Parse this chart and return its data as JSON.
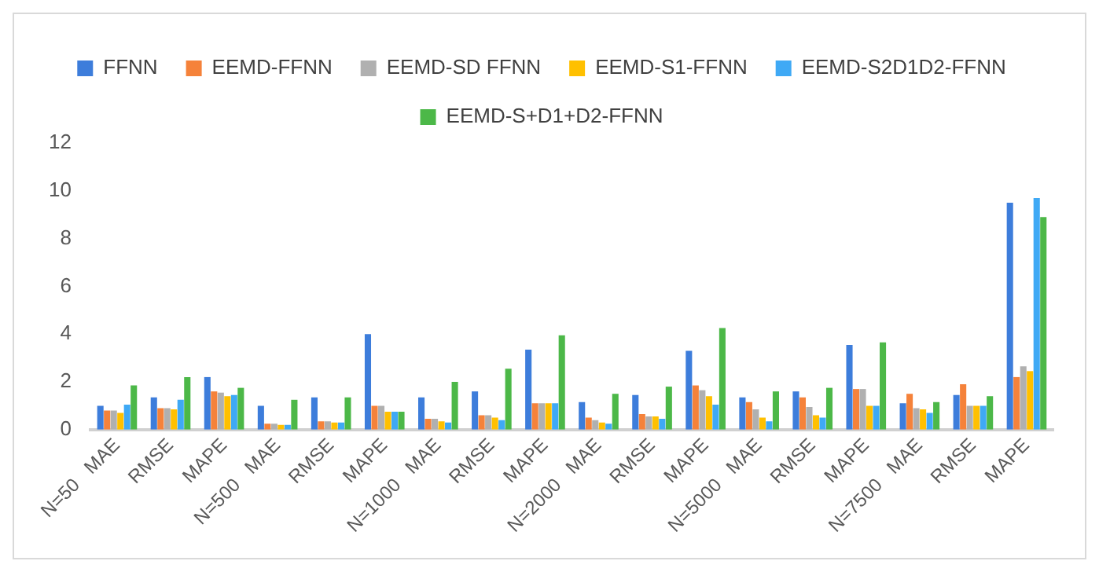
{
  "chart_data": {
    "type": "bar",
    "categories": [
      "N=50   MAE",
      "RMSE",
      "MAPE",
      "N=500   MAE",
      "RMSE",
      "MAPE",
      "N=1000   MAE",
      "RMSE",
      "MAPE",
      "N=2000   MAE",
      "RMSE",
      "MAPE",
      "N=5000   MAE",
      "RMSE",
      "MAPE",
      "N=7500   MAE",
      "RMSE",
      "MAPE"
    ],
    "series": [
      {
        "name": "FFNN",
        "color": "#3d7ddb",
        "values": [
          1.0,
          1.35,
          2.2,
          1.0,
          1.35,
          4.0,
          1.35,
          1.6,
          3.35,
          1.15,
          1.45,
          3.3,
          1.35,
          1.6,
          3.55,
          1.1,
          1.45,
          9.5
        ]
      },
      {
        "name": "EEMD-FFNN",
        "color": "#f5823a",
        "values": [
          0.8,
          0.9,
          1.6,
          0.25,
          0.35,
          1.0,
          0.45,
          0.6,
          1.1,
          0.5,
          0.65,
          1.85,
          1.15,
          1.35,
          1.7,
          1.5,
          1.9,
          2.2
        ]
      },
      {
        "name": "EEMD-SD FFNN",
        "color": "#b0b0b0",
        "values": [
          0.8,
          0.9,
          1.55,
          0.25,
          0.35,
          1.0,
          0.45,
          0.6,
          1.1,
          0.4,
          0.55,
          1.65,
          0.85,
          0.95,
          1.7,
          0.9,
          1.0,
          2.65
        ]
      },
      {
        "name": "EEMD-S1-FFNN",
        "color": "#ffc000",
        "values": [
          0.7,
          0.85,
          1.4,
          0.2,
          0.3,
          0.75,
          0.35,
          0.5,
          1.1,
          0.3,
          0.55,
          1.4,
          0.5,
          0.6,
          1.0,
          0.85,
          1.0,
          2.45
        ]
      },
      {
        "name": "EEMD-S2D1D2-FFNN",
        "color": "#3fa9f5",
        "values": [
          1.05,
          1.25,
          1.45,
          0.2,
          0.3,
          0.75,
          0.3,
          0.4,
          1.1,
          0.25,
          0.45,
          1.05,
          0.35,
          0.5,
          1.0,
          0.7,
          1.0,
          9.7
        ]
      },
      {
        "name": "EEMD-S+D1+D2-FFNN",
        "color": "#4cb848",
        "values": [
          1.85,
          2.2,
          1.75,
          1.25,
          1.35,
          0.75,
          2.0,
          2.55,
          3.95,
          1.5,
          1.8,
          4.25,
          1.6,
          1.75,
          3.65,
          1.15,
          1.4,
          8.9
        ]
      }
    ],
    "ylim": [
      0,
      12
    ],
    "yticks": [
      0,
      2,
      4,
      6,
      8,
      10,
      12
    ],
    "grid": false,
    "legend": "top"
  }
}
